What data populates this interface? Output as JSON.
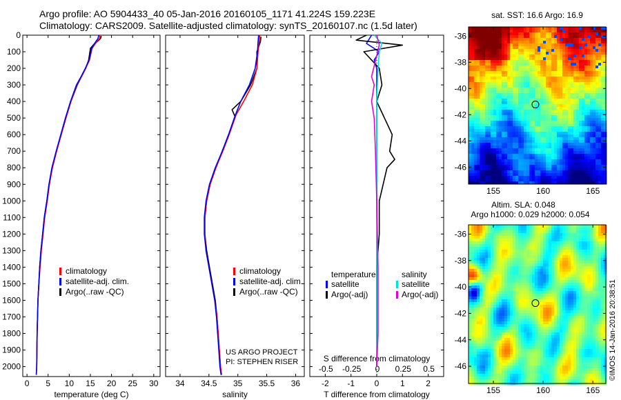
{
  "header": {
    "line1": "Argo profile: AO 5904433_40 05-Jan-2016 20160105_1171 41.224S 159.223E",
    "line2": "Climatology: CARS2009. Satellite-adjusted climatology: synTS_20160107.nc (1.5d later)"
  },
  "credit": {
    "line1": "US ARGO PROJECT",
    "line2": "PI: STEPHEN RISER"
  },
  "timestamp": "©IMOS 14-Jan-2016 20:38:51",
  "chart_data": [
    {
      "type": "line",
      "id": "temperature",
      "xlabel": "temperature (deg C)",
      "xlim": [
        -1,
        31.5
      ],
      "ylim": [
        0,
        2060
      ],
      "xticks": [
        0,
        5,
        10,
        15,
        20,
        25,
        30
      ],
      "yticks": [
        0,
        100,
        200,
        300,
        400,
        500,
        600,
        700,
        800,
        900,
        1000,
        1100,
        1200,
        1300,
        1400,
        1500,
        1600,
        1700,
        1800,
        1900,
        2000
      ],
      "legend": [
        "climatology",
        "satellite-adj. clim.",
        "Argo(..raw -QC)"
      ],
      "series": [
        {
          "name": "climatology",
          "color": "#ff0000",
          "x": [
            17.3,
            17.2,
            16.2,
            15.4,
            14.8,
            13.9,
            12.9,
            11.8,
            10.4,
            9.2,
            8.1,
            7.0,
            6.0,
            5.3,
            4.8,
            4.2,
            3.8,
            3.4,
            3.1,
            2.8,
            2.6,
            2.4,
            2.3,
            2.2
          ],
          "y": [
            0,
            20,
            50,
            80,
            150,
            200,
            250,
            300,
            400,
            500,
            600,
            700,
            800,
            900,
            1000,
            1100,
            1200,
            1300,
            1400,
            1500,
            1600,
            1800,
            2000,
            2050
          ]
        },
        {
          "name": "satellite-adj. clim.",
          "color": "#0000ff",
          "x": [
            17.0,
            16.8,
            16.0,
            15.3,
            14.7,
            13.8,
            12.8,
            11.7,
            10.3,
            9.1,
            8.0,
            6.9,
            5.9,
            5.2,
            4.7,
            4.1,
            3.7,
            3.3,
            3.0,
            2.8,
            2.6,
            2.4,
            2.3,
            2.2
          ],
          "y": [
            0,
            20,
            50,
            80,
            150,
            200,
            250,
            300,
            400,
            500,
            600,
            700,
            800,
            900,
            1000,
            1100,
            1200,
            1300,
            1400,
            1500,
            1600,
            1800,
            2000,
            2050
          ]
        },
        {
          "name": "Argo(..raw -QC)",
          "color": "#000000",
          "x": [
            17.6,
            17.4,
            16.8,
            16.0,
            15.0,
            14.6,
            13.9,
            12.9,
            11.9,
            10.4,
            9.2,
            8.1,
            7.0,
            6.0,
            5.2,
            4.7,
            4.1,
            3.7,
            3.3,
            3.0,
            2.8,
            2.6,
            2.4,
            2.3
          ],
          "y": [
            5,
            20,
            35,
            50,
            80,
            150,
            200,
            250,
            300,
            400,
            500,
            600,
            700,
            800,
            900,
            1000,
            1100,
            1200,
            1300,
            1400,
            1500,
            1600,
            1800,
            2000
          ]
        }
      ]
    },
    {
      "type": "line",
      "id": "salinity",
      "xlabel": "salinity",
      "xlim": [
        33.75,
        36.15
      ],
      "ylim": [
        0,
        2060
      ],
      "xticks": [
        34,
        34.5,
        35,
        35.5,
        36
      ],
      "legend": [
        "climatology",
        "satellite-adj. clim.",
        "Argo(..raw -QC)"
      ],
      "series": [
        {
          "name": "climatology",
          "color": "#ff0000",
          "x": [
            35.38,
            35.37,
            35.35,
            35.33,
            35.25,
            35.1,
            34.97,
            34.85,
            34.74,
            34.62,
            34.52,
            34.46,
            34.43,
            34.43,
            34.45,
            34.5,
            34.55,
            34.6,
            34.64,
            34.66,
            34.68,
            34.7,
            34.72
          ],
          "y": [
            0,
            40,
            100,
            200,
            300,
            400,
            480,
            600,
            700,
            800,
            900,
            1000,
            1100,
            1200,
            1300,
            1400,
            1500,
            1600,
            1700,
            1800,
            1900,
            2000,
            2050
          ]
        },
        {
          "name": "satellite-adj. clim.",
          "color": "#0000ff",
          "x": [
            35.36,
            35.35,
            35.34,
            35.3,
            35.2,
            35.05,
            34.96,
            34.84,
            34.73,
            34.61,
            34.51,
            34.45,
            34.42,
            34.42,
            34.45,
            34.5,
            34.55,
            34.6,
            34.63,
            34.65,
            34.67,
            34.69,
            34.71
          ],
          "y": [
            0,
            40,
            100,
            200,
            300,
            400,
            480,
            600,
            700,
            800,
            900,
            1000,
            1100,
            1200,
            1300,
            1400,
            1500,
            1600,
            1700,
            1800,
            1900,
            2000,
            2050
          ]
        },
        {
          "name": "Argo(..raw -QC)",
          "color": "#000000",
          "x": [
            35.4,
            35.39,
            35.33,
            35.33,
            35.22,
            35.05,
            34.9,
            34.95,
            34.84,
            34.73,
            34.62,
            34.52,
            34.46,
            34.43,
            34.43,
            34.46,
            34.51,
            34.56,
            34.61,
            34.64,
            34.66,
            34.68,
            34.7
          ],
          "y": [
            10,
            40,
            100,
            200,
            300,
            400,
            450,
            490,
            600,
            700,
            800,
            900,
            1000,
            1100,
            1200,
            1300,
            1400,
            1500,
            1600,
            1700,
            1800,
            1900,
            2000
          ]
        }
      ]
    },
    {
      "type": "line",
      "id": "difference",
      "xlabel": "T difference from climatology",
      "xlabel_top": "S difference from climatology",
      "xlim": [
        -2.6,
        2.6
      ],
      "ylim": [
        0,
        2060
      ],
      "xticks": [
        -2,
        -1,
        0,
        1,
        2
      ],
      "xticks_top": [
        "-0.5",
        "-0.25",
        "0",
        "0.25",
        "0.5"
      ],
      "xticks_top_pos": [
        -2,
        -1,
        0,
        1,
        2
      ],
      "legend_left_header": "temperature",
      "legend_right_header": "salinity",
      "legend_left": [
        "satellite",
        "Argo(-adj)"
      ],
      "legend_right": [
        "satellite",
        "Argo(-adj)"
      ],
      "series": [
        {
          "name": "satellite",
          "quantity": "temperature",
          "color": "#0000ff",
          "x": [
            -0.2,
            -0.4,
            0.1,
            -0.1,
            0.0,
            0.0,
            0.0,
            0.0,
            0.0,
            0.0,
            0.0,
            0.0
          ],
          "y": [
            0,
            50,
            100,
            150,
            200,
            300,
            500,
            800,
            1100,
            1400,
            1700,
            2000
          ]
        },
        {
          "name": "Argo(-adj)",
          "quantity": "temperature",
          "color": "#000000",
          "x": [
            -0.4,
            -0.8,
            1.0,
            -0.5,
            0.1,
            0.2,
            0.0,
            0.3,
            0.6,
            0.5,
            0.7,
            0.4,
            0.1,
            0.1,
            0.0,
            0.0,
            0.0,
            0.0
          ],
          "y": [
            0,
            30,
            60,
            100,
            200,
            300,
            400,
            500,
            600,
            700,
            750,
            800,
            1000,
            1200,
            1400,
            1600,
            1800,
            2000
          ]
        },
        {
          "name": "satellite",
          "quantity": "salinity",
          "color": "#00e0e0",
          "x": [
            -0.1,
            0.2,
            0.1,
            0.05,
            0.0,
            0.0,
            0.0,
            0.0,
            0.0
          ],
          "y": [
            0,
            50,
            100,
            200,
            400,
            700,
            1000,
            1500,
            2000
          ]
        },
        {
          "name": "Argo(-adj)",
          "quantity": "salinity",
          "color": "#e000e0",
          "x": [
            0.0,
            0.1,
            -0.2,
            -0.1,
            -0.2,
            -0.1,
            -0.05,
            0.0,
            0.05,
            0.05,
            0.0
          ],
          "y": [
            0,
            60,
            250,
            300,
            400,
            500,
            700,
            1000,
            1400,
            1800,
            2000
          ]
        }
      ]
    },
    {
      "type": "heatmap",
      "id": "sst-map",
      "title": "sat. SST: 16.6  Argo: 16.9",
      "xlim": [
        152.5,
        166.3
      ],
      "ylim": [
        -47.3,
        -35.3
      ],
      "xticks": [
        155,
        160,
        165
      ],
      "yticks": [
        -36,
        -38,
        -40,
        -42,
        -44,
        -46
      ],
      "marker": {
        "lon": 159.223,
        "lat": -41.224
      }
    },
    {
      "type": "heatmap",
      "id": "sla-map",
      "title": "Altim. SLA: 0.048",
      "subtitle": "Argo h1000: 0.029 h2000: 0.054",
      "xlim": [
        152.5,
        166.3
      ],
      "ylim": [
        -47.3,
        -35.3
      ],
      "xticks": [
        155,
        160,
        165
      ],
      "yticks": [
        -36,
        -38,
        -40,
        -42,
        -44,
        -46
      ],
      "marker": {
        "lon": 159.223,
        "lat": -41.224
      }
    }
  ]
}
